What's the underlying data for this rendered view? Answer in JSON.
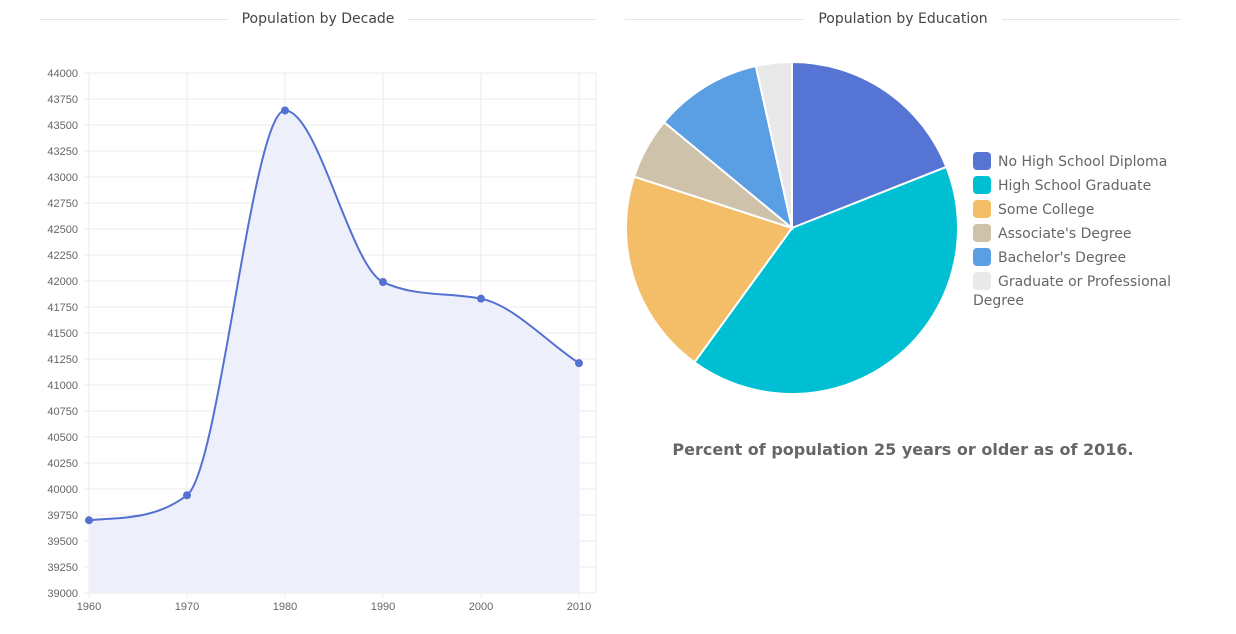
{
  "titles": {
    "left": "Population by Decade",
    "right": "Population by Education"
  },
  "caption": "Percent of population 25 years or older as of 2016.",
  "colors": {
    "line": "#5470d0",
    "area": "#edf0fa",
    "grid": "#ebebeb"
  },
  "chart_data": [
    {
      "type": "area",
      "title": "Population by Decade",
      "xlabel": "",
      "ylabel": "",
      "x": [
        1960,
        1970,
        1980,
        1990,
        2000,
        2010
      ],
      "values": [
        39700,
        39940,
        43640,
        41990,
        41830,
        41210
      ],
      "ylim": [
        39000,
        44000
      ],
      "y_ticks": [
        39000,
        39250,
        39500,
        39750,
        40000,
        40250,
        40500,
        40750,
        41000,
        41250,
        41500,
        41750,
        42000,
        42250,
        42500,
        42750,
        43000,
        43250,
        43500,
        43750,
        44000
      ],
      "grid": true,
      "curve": "smooth"
    },
    {
      "type": "pie",
      "title": "Population by Education",
      "legend_position": "right",
      "slices": [
        {
          "label": "No High School Diploma",
          "value": 19,
          "color": "#5574d4"
        },
        {
          "label": "High School Graduate",
          "value": 41,
          "color": "#00bfd3"
        },
        {
          "label": "Some College",
          "value": 20,
          "color": "#f4bd68"
        },
        {
          "label": "Associate's Degree",
          "value": 6,
          "color": "#cfc2aa"
        },
        {
          "label": "Bachelor's Degree",
          "value": 10.5,
          "color": "#5a9ee3"
        },
        {
          "label": "Graduate or Professional Degree",
          "value": 3.5,
          "color": "#e9e9e9"
        }
      ]
    }
  ]
}
